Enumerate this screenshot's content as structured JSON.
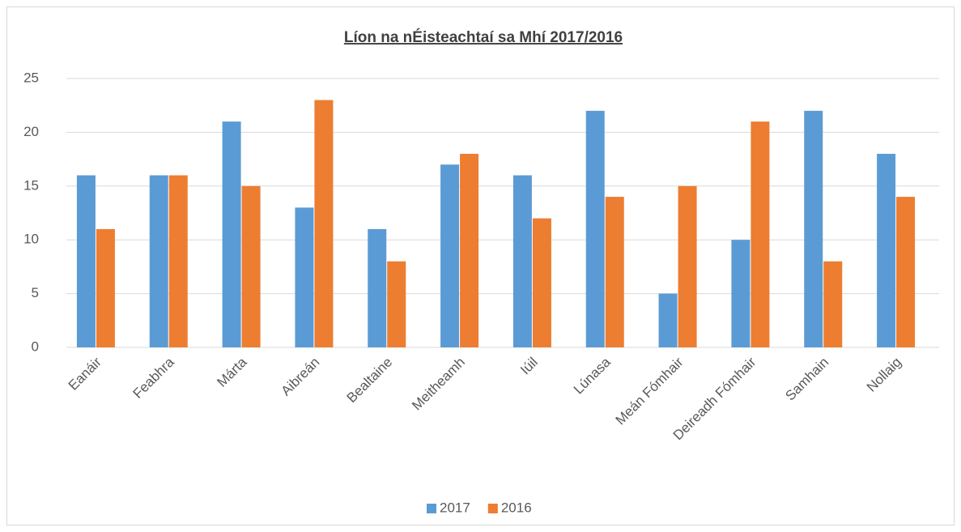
{
  "chart_data": {
    "type": "bar",
    "title": "Líon na nÉisteachtaí sa Mhí 2017/2016",
    "categories": [
      "Eanáir",
      "Feabhra",
      "Márta",
      "Aibreán",
      "Bealtaine",
      "Meitheamh",
      "Iúil",
      "Lúnasa",
      "Meán Fómhair",
      "Deireadh Fómhair",
      "Samhain",
      "Nollaig"
    ],
    "series": [
      {
        "name": "2017",
        "color": "#5b9bd5",
        "values": [
          16,
          16,
          21,
          13,
          11,
          17,
          16,
          22,
          5,
          10,
          22,
          18
        ]
      },
      {
        "name": "2016",
        "color": "#ed7d31",
        "values": [
          11,
          16,
          15,
          23,
          8,
          18,
          12,
          14,
          15,
          21,
          8,
          14
        ]
      }
    ],
    "ylim": [
      0,
      25
    ],
    "yticks": [
      0,
      5,
      10,
      15,
      20,
      25
    ],
    "grid": true,
    "legend": "bottom"
  }
}
